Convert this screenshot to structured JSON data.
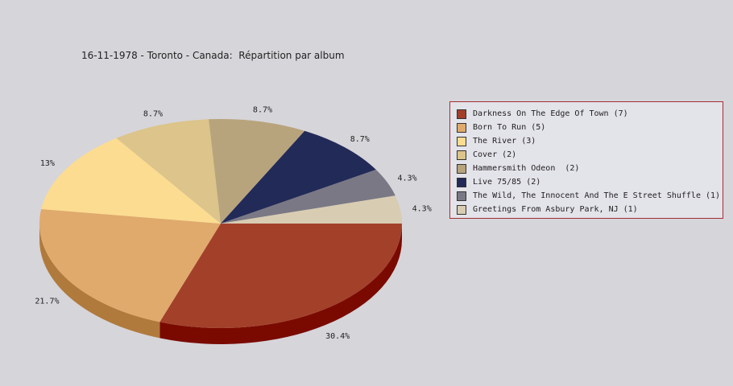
{
  "title": "16-11-1978 - Toronto - Canada:  Répartition par album",
  "chart_data": {
    "type": "pie",
    "title": "16-11-1978 - Toronto - Canada:  Répartition par album",
    "slices": [
      {
        "label": "Darkness On The Edge Of Town",
        "count": 7,
        "legend": "Darkness On The Edge Of Town (7)",
        "percent_label": "30.4%",
        "value": 30.4,
        "color": "#a3402a",
        "side_color": "#7a0a00"
      },
      {
        "label": "Born To Run",
        "count": 5,
        "legend": "Born To Run (5)",
        "percent_label": "21.7%",
        "value": 21.7,
        "color": "#e0aa6c",
        "side_color": "#b07a3c"
      },
      {
        "label": "The River",
        "count": 3,
        "legend": "The River (3)",
        "percent_label": "13%",
        "value": 13.0,
        "color": "#fcdc90",
        "side_color": "#c8a860"
      },
      {
        "label": "Cover",
        "count": 2,
        "legend": "Cover (2)",
        "percent_label": "8.7%",
        "value": 8.7,
        "color": "#dcc48a",
        "side_color": "#a8905a"
      },
      {
        "label": "Hammersmith Odeon",
        "count": 2,
        "legend": "Hammersmith Odeon  (2)",
        "percent_label": "8.7%",
        "value": 8.7,
        "color": "#b8a47c",
        "side_color": "#88744c"
      },
      {
        "label": "Live 75/85",
        "count": 2,
        "legend": "Live 75/85 (2)",
        "percent_label": "8.7%",
        "value": 8.7,
        "color": "#222a58",
        "side_color": "#10142c"
      },
      {
        "label": "The Wild, The Innocent And The E Street Shuffle",
        "count": 1,
        "legend": "The Wild, The Innocent And The E Street Shuffle (1)",
        "percent_label": "4.3%",
        "value": 4.3,
        "color": "#7a7884",
        "side_color": "#4c4a56"
      },
      {
        "label": "Greetings From Asbury Park, NJ",
        "count": 1,
        "legend": "Greetings From Asbury Park, NJ (1)",
        "percent_label": "4.3%",
        "value": 4.3,
        "color": "#d8ccb2",
        "side_color": "#a89c82"
      }
    ],
    "legend_position": "right",
    "style": "3d-pie"
  }
}
